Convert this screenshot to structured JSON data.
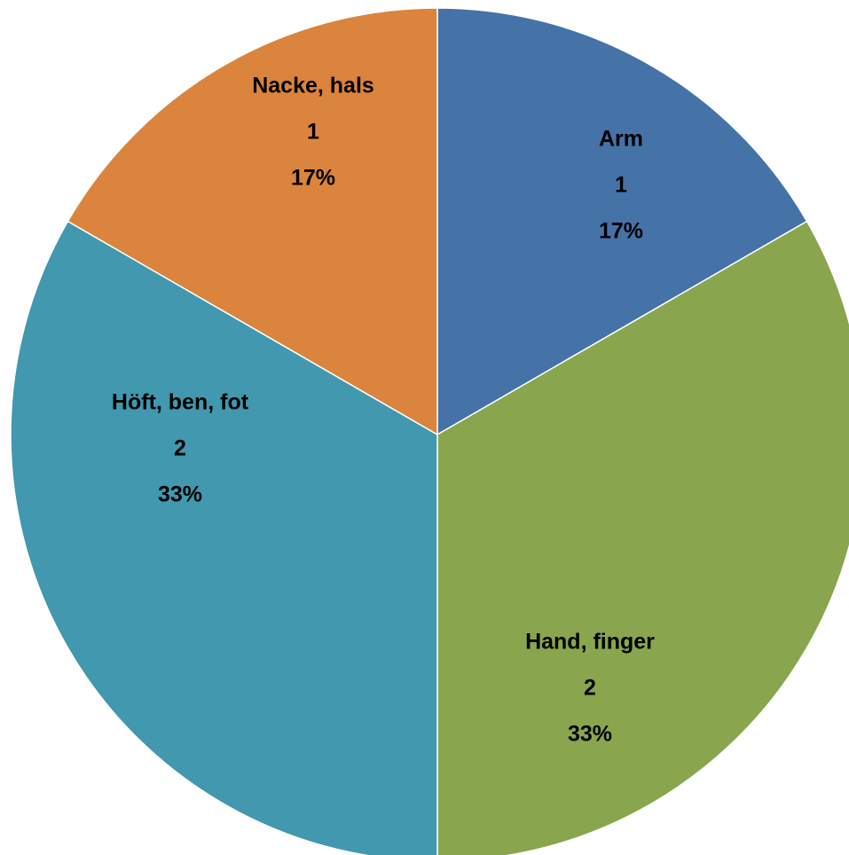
{
  "chart_data": {
    "type": "pie",
    "categories": [
      "Arm",
      "Hand, finger",
      "Höft, ben, fot",
      "Nacke, hals"
    ],
    "values": [
      1,
      2,
      2,
      1
    ],
    "percent_labels": [
      "17%",
      "33%",
      "33%",
      "17%"
    ],
    "colors": [
      "#4572a7",
      "#89a54e",
      "#4198af",
      "#db843d"
    ]
  }
}
